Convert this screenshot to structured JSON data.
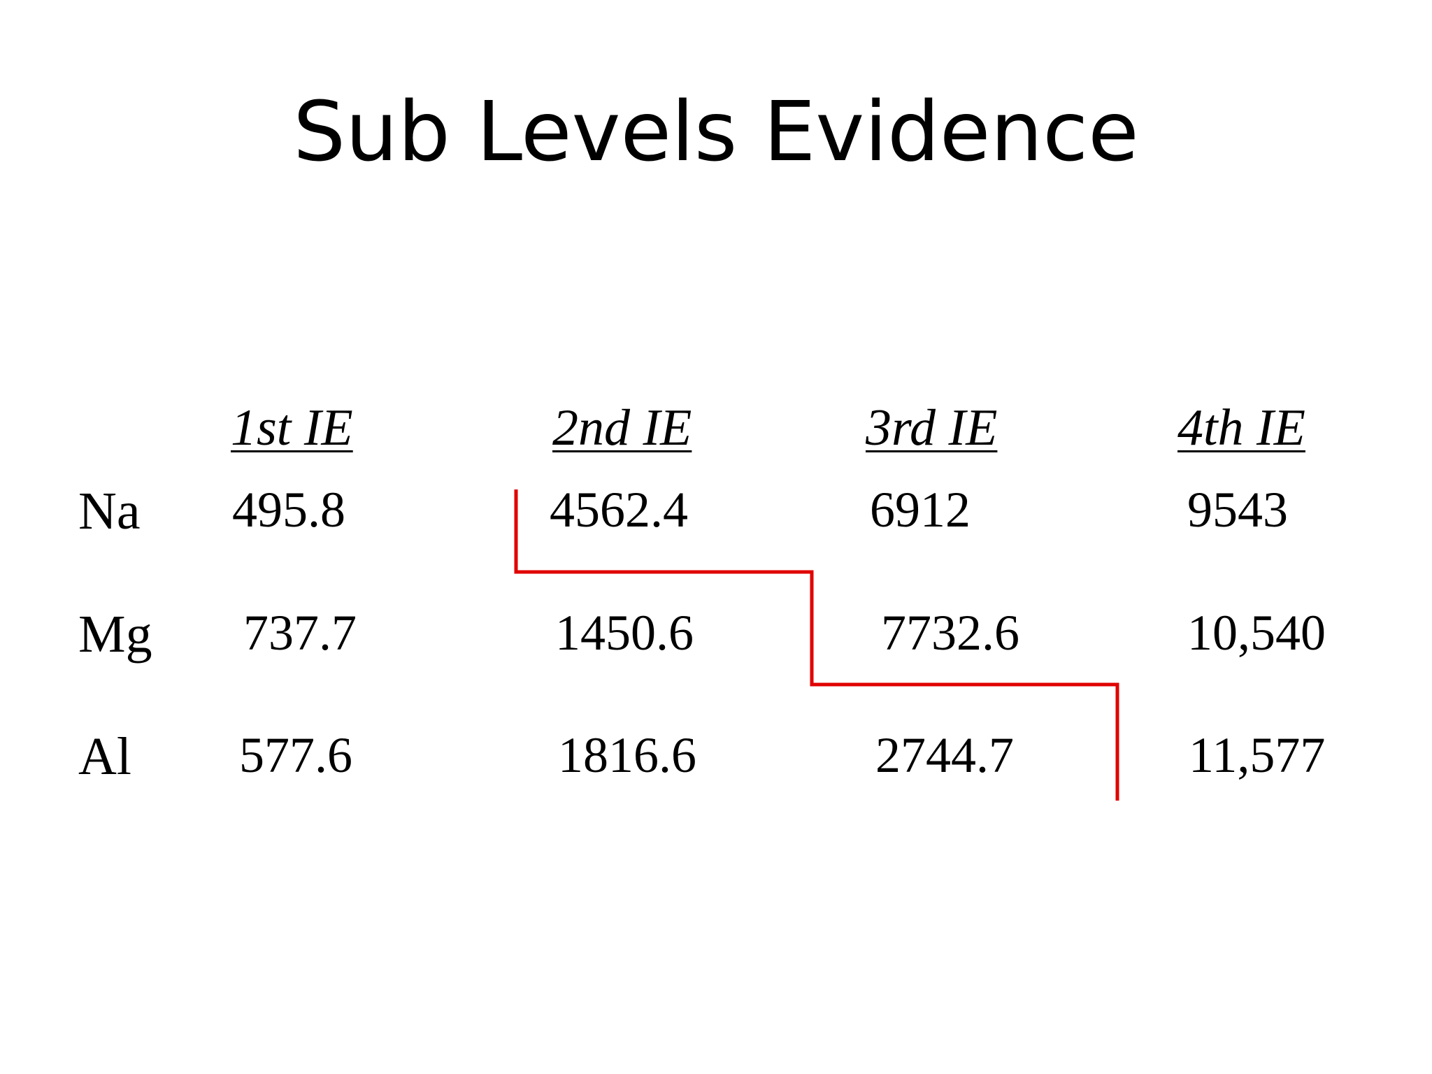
{
  "slide": {
    "title": "Sub Levels Evidence"
  },
  "table": {
    "headers": [
      "1st IE",
      "2nd IE",
      "3rd IE",
      "4th IE"
    ],
    "rows": [
      {
        "label": "Na",
        "values": [
          "495.8",
          "4562.4",
          "6912",
          "9543"
        ]
      },
      {
        "label": "Mg",
        "values": [
          "737.7",
          "1450.6",
          "7732.6",
          "10,540"
        ]
      },
      {
        "label": "Al",
        "values": [
          "577.6",
          "1816.6",
          "2744.7",
          "11,577"
        ]
      }
    ]
  },
  "colors": {
    "stair_line": "#e00000",
    "text": "#000000",
    "background": "#ffffff"
  }
}
